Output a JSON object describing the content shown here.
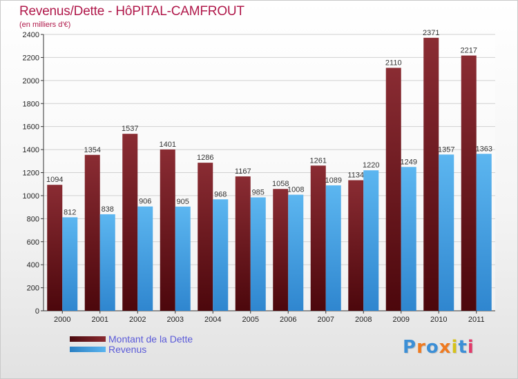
{
  "header": {
    "title": "Revenus/Dette - HôPITAL-CAMFROUT",
    "subtitle": "(en milliers d'€)"
  },
  "legend": {
    "items": [
      {
        "label": "Montant de la Dette",
        "color": "#7a1e24"
      },
      {
        "label": "Revenus",
        "color": "#4aa6e6"
      }
    ]
  },
  "logo": {
    "text": "Proxiti",
    "letter_colors": [
      "#3c8fd6",
      "#ef7a20",
      "#3c8fd6",
      "#ef7a20",
      "#d6c21a",
      "#3c8fd6",
      "#e23a6a"
    ]
  },
  "chart_data": {
    "type": "bar",
    "categories": [
      "2000",
      "2001",
      "2002",
      "2003",
      "2004",
      "2005",
      "2006",
      "2007",
      "2008",
      "2009",
      "2010",
      "2011"
    ],
    "series": [
      {
        "name": "Montant de la Dette",
        "color": "#7a1e24",
        "values": [
          1094,
          1354,
          1537,
          1401,
          1286,
          1167,
          1058,
          1261,
          1134,
          2110,
          2371,
          2217
        ]
      },
      {
        "name": "Revenus",
        "color": "#4aa6e6",
        "values": [
          812,
          838,
          906,
          905,
          968,
          985,
          1008,
          1089,
          1220,
          1249,
          1357,
          1363
        ]
      }
    ],
    "ylim": [
      0,
      2400
    ],
    "yticks": [
      0,
      200,
      400,
      600,
      800,
      1000,
      1200,
      1400,
      1600,
      1800,
      2000,
      2200,
      2400
    ],
    "grid": true,
    "legend_position": "bottom-left"
  }
}
